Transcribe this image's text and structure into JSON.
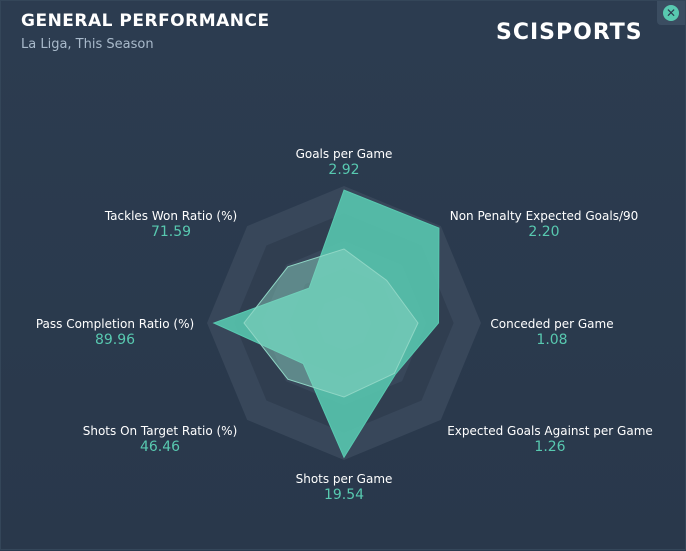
{
  "header": {
    "title": "GENERAL PERFORMANCE",
    "subtitle": "La Liga, This Season",
    "logo_text": "SCISPORTS",
    "close_icon": "close-circle-icon"
  },
  "colors": {
    "background": "#2b3a4e",
    "accent": "#58c9b0",
    "secondary_fill": "#8fd6c5",
    "ring_dark": "#303e50",
    "ring_light": "#38475a"
  },
  "chart_data": {
    "type": "radar",
    "title": "GENERAL PERFORMANCE",
    "subtitle": "La Liga, This Season",
    "axes": [
      {
        "label": "Goals per Game",
        "value": "2.92"
      },
      {
        "label": "Non Penalty Expected Goals/90",
        "value": "2.20"
      },
      {
        "label": "Conceded per Game",
        "value": "1.08"
      },
      {
        "label": "Expected Goals Against per Game",
        "value": "1.26"
      },
      {
        "label": "Shots per Game",
        "value": "19.54"
      },
      {
        "label": "Shots On Target Ratio (%)",
        "value": "46.46"
      },
      {
        "label": "Pass Completion Ratio (%)",
        "value": "89.96"
      },
      {
        "label": "Tackles Won Ratio (%)",
        "value": "71.59"
      }
    ],
    "series": [
      {
        "normalized": [
          0.97,
          0.98,
          0.69,
          0.53,
          0.98,
          0.42,
          0.95,
          0.36
        ]
      },
      {
        "normalized": [
          0.54,
          0.44,
          0.54,
          0.52,
          0.54,
          0.58,
          0.73,
          0.58
        ]
      }
    ],
    "rings": 5
  }
}
